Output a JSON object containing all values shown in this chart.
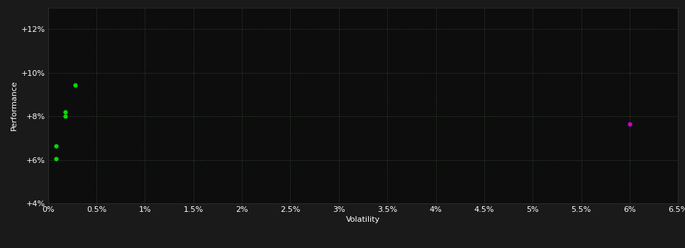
{
  "background_color": "#1a1a1a",
  "plot_bg_color": "#0d0d0d",
  "grid_color": "#2a3a2a",
  "text_color": "#ffffff",
  "xlabel": "Volatility",
  "ylabel": "Performance",
  "xlim": [
    0,
    0.065
  ],
  "ylim": [
    0.04,
    0.13
  ],
  "xticks": [
    0.0,
    0.005,
    0.01,
    0.015,
    0.02,
    0.025,
    0.03,
    0.035,
    0.04,
    0.045,
    0.05,
    0.055,
    0.06,
    0.065
  ],
  "xtick_labels": [
    "0%",
    "0.5%",
    "1%",
    "1.5%",
    "2%",
    "2.5%",
    "3%",
    "3.5%",
    "4%",
    "4.5%",
    "5%",
    "5.5%",
    "6%",
    "6.5%"
  ],
  "yticks": [
    0.04,
    0.06,
    0.08,
    0.1,
    0.12
  ],
  "ytick_labels": [
    "+4%",
    "+6%",
    "+8%",
    "+10%",
    "+12%"
  ],
  "green_points": [
    [
      0.0028,
      0.0945
    ],
    [
      0.0018,
      0.08
    ],
    [
      0.0018,
      0.082
    ],
    [
      0.0008,
      0.0665
    ],
    [
      0.0008,
      0.0605
    ]
  ],
  "magenta_points": [
    [
      0.06,
      0.0765
    ]
  ],
  "green_color": "#00dd00",
  "magenta_color": "#cc00cc",
  "marker_size": 20,
  "xlabel_fontsize": 8,
  "ylabel_fontsize": 8,
  "tick_fontsize": 8
}
